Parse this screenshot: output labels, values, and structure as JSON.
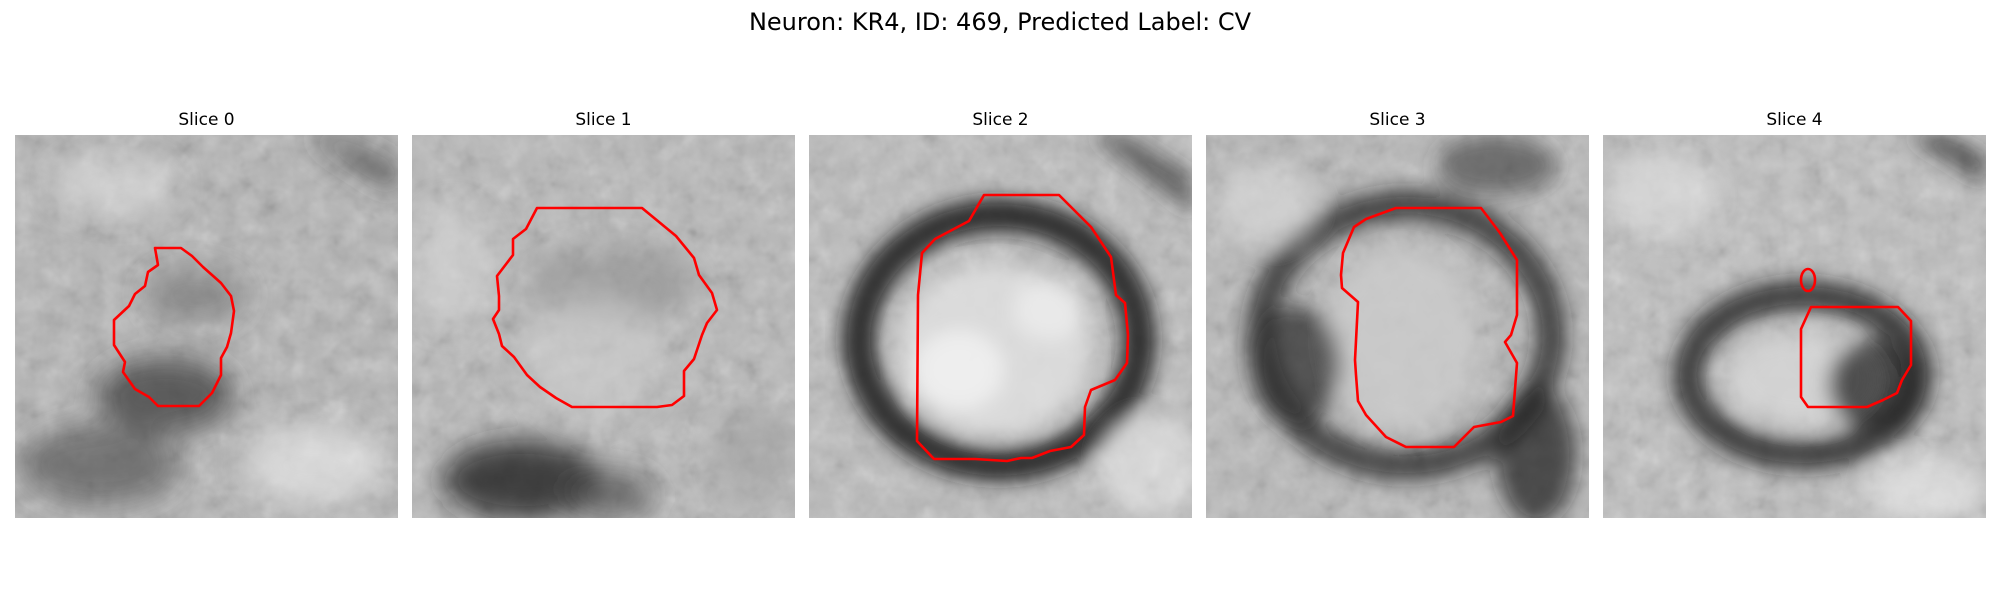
{
  "figure": {
    "title": "Neuron: KR4, ID: 469, Predicted Label: CV"
  },
  "contour_color": "#ff0000",
  "panels": [
    {
      "title": "Slice 0"
    },
    {
      "title": "Slice 1"
    },
    {
      "title": "Slice 2"
    },
    {
      "title": "Slice 3"
    },
    {
      "title": "Slice 4"
    }
  ]
}
